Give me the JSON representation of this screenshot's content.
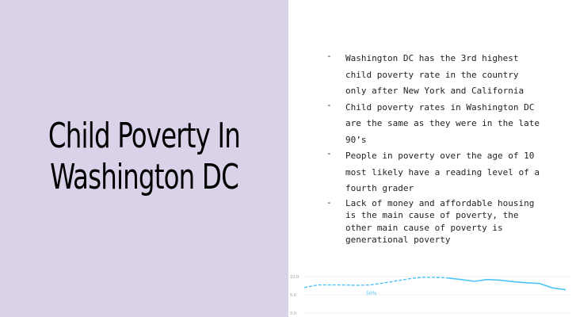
{
  "slide": {
    "title_line1": "Child Poverty In",
    "title_line2": "Washington DC",
    "bullet_marker": "-",
    "bullets": [
      "Washington DC has the 3rd highest\nchild poverty rate in the country\nonly after New York and California",
      "Child poverty rates in Washington DC\nare the same as they were in the late\n90’s",
      "People in poverty over the age of 10\nmost likely have a reading level of a\nfourth grader",
      "Lack of money and affordable housing\nis the main cause of poverty, the\nother main cause of poverty is\ngenerational poverty"
    ]
  },
  "colors": {
    "left_panel": "#d9d2e9",
    "line": "#4fc3f7",
    "gridline": "#e0e0e0"
  },
  "chart_data": {
    "type": "line",
    "y_ticks": [
      "10.0",
      "5.0",
      "0.0"
    ],
    "ylim": [
      0,
      10
    ],
    "annotation": "50%",
    "x": [
      0,
      1,
      2,
      3,
      4,
      5,
      6,
      7,
      8,
      9,
      10,
      11,
      12,
      13,
      14,
      15,
      16,
      17,
      18,
      19,
      20
    ],
    "series": [
      {
        "values": [
          7.0,
          7.7,
          7.7,
          7.7,
          7.6,
          7.7,
          8.2,
          8.8,
          9.4,
          9.8,
          9.8,
          9.6,
          9.2,
          8.7,
          9.2,
          9.0,
          8.6,
          8.3,
          8.1,
          6.9,
          6.4
        ],
        "dashed_until_index": 11
      }
    ]
  }
}
